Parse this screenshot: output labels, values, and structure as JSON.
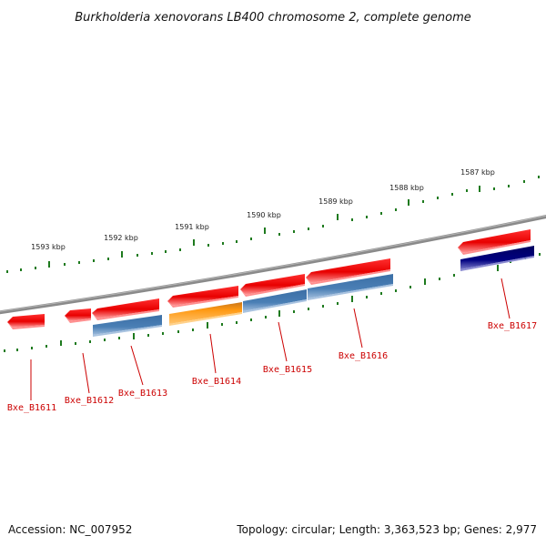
{
  "title": "Burkholderia xenovorans LB400 chromosome 2, complete genome",
  "colors": {
    "backbone": "#8a8a8a",
    "tick": "#1e7a1e",
    "gene_forward": "#ee1111",
    "gene_label": "#cc0000",
    "cds_blue": "#4a7fb5",
    "cds_orange": "#ff9912",
    "cds_navy": "#000080"
  },
  "kbp_labels": [
    "1587 kbp",
    "1588 kbp",
    "1589 kbp",
    "1590 kbp",
    "1591 kbp",
    "1592 kbp",
    "1593 kbp"
  ],
  "genes": [
    {
      "id": "Bxe_B1611",
      "strand": "reverse",
      "cds_color": null
    },
    {
      "id": "Bxe_B1612",
      "strand": "reverse",
      "cds_color": null
    },
    {
      "id": "Bxe_B1613",
      "strand": "reverse",
      "cds_color": "blue"
    },
    {
      "id": "Bxe_B1614",
      "strand": "reverse",
      "cds_color": "orange"
    },
    {
      "id": "Bxe_B1615",
      "strand": "reverse",
      "cds_color": "blue"
    },
    {
      "id": "Bxe_B1616",
      "strand": "reverse",
      "cds_color": "blue"
    },
    {
      "id": "Bxe_B1617",
      "strand": "reverse",
      "cds_color": "navy"
    }
  ],
  "footer": {
    "accession": "Accession: NC_007952",
    "summary": "Topology: circular; Length: 3,363,523 bp; Genes: 2,977"
  }
}
